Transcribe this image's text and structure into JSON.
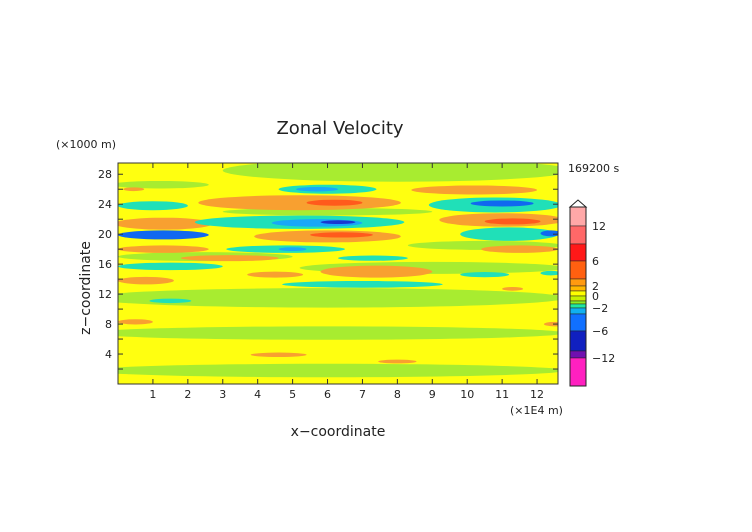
{
  "chart_data": {
    "type": "heatmap",
    "title": "Zonal Velocity",
    "xlabel": "x−coordinate",
    "ylabel": "z−coordinate",
    "x_units": "(×1E4 m)",
    "y_units": "(×1000 m)",
    "time_label": "169200 s",
    "xlim": [
      0,
      12.6
    ],
    "ylim": [
      0,
      29.5
    ],
    "xticks": [
      1,
      2,
      3,
      4,
      5,
      6,
      7,
      8,
      9,
      10,
      11,
      12
    ],
    "yticks": [
      4,
      8,
      12,
      16,
      20,
      24,
      28
    ],
    "background_value": 1,
    "features": [
      {
        "x": 8,
        "z": 28.5,
        "rx": 5,
        "rz": 1.5,
        "v": -0.5
      },
      {
        "x": 1.2,
        "z": 26.6,
        "rx": 1.4,
        "rz": 0.5,
        "v": -0.5
      },
      {
        "x": 6,
        "z": 11.5,
        "rx": 6.8,
        "rz": 1.3,
        "v": -0.5
      },
      {
        "x": 6,
        "z": 6.8,
        "rx": 6.8,
        "rz": 0.9,
        "v": -0.5
      },
      {
        "x": 6,
        "z": 1.8,
        "rx": 6.8,
        "rz": 0.9,
        "v": -0.5
      },
      {
        "x": 9,
        "z": 15.5,
        "rx": 3.8,
        "rz": 0.8,
        "v": -0.5
      },
      {
        "x": 6,
        "z": 23,
        "rx": 3,
        "rz": 0.5,
        "v": -0.5
      },
      {
        "x": 2.5,
        "z": 17,
        "rx": 2.5,
        "rz": 0.6,
        "v": -0.5
      },
      {
        "x": 10.5,
        "z": 18.5,
        "rx": 2.2,
        "rz": 0.6,
        "v": -0.5
      },
      {
        "x": 1.3,
        "z": 21.4,
        "rx": 1.4,
        "rz": 0.8,
        "v": 3
      },
      {
        "x": 5.2,
        "z": 24.2,
        "rx": 2.9,
        "rz": 1.0,
        "v": 3
      },
      {
        "x": 6.2,
        "z": 24.2,
        "rx": 0.8,
        "rz": 0.4,
        "v": 5
      },
      {
        "x": 6.0,
        "z": 19.7,
        "rx": 2.1,
        "rz": 0.8,
        "v": 3
      },
      {
        "x": 6.4,
        "z": 19.9,
        "rx": 0.9,
        "rz": 0.35,
        "v": 5
      },
      {
        "x": 1.3,
        "z": 18,
        "rx": 1.3,
        "rz": 0.5,
        "v": 3
      },
      {
        "x": 3.2,
        "z": 16.8,
        "rx": 1.4,
        "rz": 0.4,
        "v": 3
      },
      {
        "x": 0.8,
        "z": 13.8,
        "rx": 0.8,
        "rz": 0.5,
        "v": 3
      },
      {
        "x": 4.5,
        "z": 14.6,
        "rx": 0.8,
        "rz": 0.4,
        "v": 3
      },
      {
        "x": 7.4,
        "z": 15,
        "rx": 1.6,
        "rz": 0.8,
        "v": 3
      },
      {
        "x": 0.5,
        "z": 8.3,
        "rx": 0.5,
        "rz": 0.35,
        "v": 3
      },
      {
        "x": 10.2,
        "z": 25.9,
        "rx": 1.8,
        "rz": 0.6,
        "v": 3
      },
      {
        "x": 11.0,
        "z": 21.9,
        "rx": 1.8,
        "rz": 0.9,
        "v": 3
      },
      {
        "x": 11.3,
        "z": 21.7,
        "rx": 0.8,
        "rz": 0.4,
        "v": 5
      },
      {
        "x": 11.5,
        "z": 18,
        "rx": 1.1,
        "rz": 0.5,
        "v": 3
      },
      {
        "x": 4.6,
        "z": 3.9,
        "rx": 0.8,
        "rz": 0.3,
        "v": 3
      },
      {
        "x": 8.0,
        "z": 3.0,
        "rx": 0.55,
        "rz": 0.25,
        "v": 3
      },
      {
        "x": 12.5,
        "z": 8,
        "rx": 0.3,
        "rz": 0.3,
        "v": 3
      },
      {
        "x": 11.3,
        "z": 12.7,
        "rx": 0.3,
        "rz": 0.25,
        "v": 3
      },
      {
        "x": 0.45,
        "z": 26,
        "rx": 0.3,
        "rz": 0.25,
        "v": 3
      },
      {
        "x": 6,
        "z": 26,
        "rx": 1.4,
        "rz": 0.6,
        "v": -2
      },
      {
        "x": 5.7,
        "z": 26,
        "rx": 0.6,
        "rz": 0.3,
        "v": -4
      },
      {
        "x": 5.2,
        "z": 21.6,
        "rx": 3.0,
        "rz": 0.9,
        "v": -2
      },
      {
        "x": 5.7,
        "z": 21.5,
        "rx": 1.3,
        "rz": 0.5,
        "v": -4
      },
      {
        "x": 6.3,
        "z": 21.6,
        "rx": 0.5,
        "rz": 0.25,
        "v": -6
      },
      {
        "x": 1.3,
        "z": 19.9,
        "rx": 1.3,
        "rz": 0.6,
        "v": -5
      },
      {
        "x": 1.0,
        "z": 23.8,
        "rx": 1.0,
        "rz": 0.6,
        "v": -2
      },
      {
        "x": 10.8,
        "z": 23.9,
        "rx": 1.9,
        "rz": 1.0,
        "v": -2
      },
      {
        "x": 11.0,
        "z": 24.1,
        "rx": 0.9,
        "rz": 0.4,
        "v": -5
      },
      {
        "x": 11.2,
        "z": 20.0,
        "rx": 1.4,
        "rz": 0.9,
        "v": -2
      },
      {
        "x": 12.4,
        "z": 20.1,
        "rx": 0.3,
        "rz": 0.4,
        "v": -5
      },
      {
        "x": 4.8,
        "z": 18,
        "rx": 1.7,
        "rz": 0.5,
        "v": -2
      },
      {
        "x": 5.0,
        "z": 18,
        "rx": 0.4,
        "rz": 0.25,
        "v": -4
      },
      {
        "x": 7.3,
        "z": 16.8,
        "rx": 1.0,
        "rz": 0.35,
        "v": -2
      },
      {
        "x": 1.5,
        "z": 15.7,
        "rx": 1.5,
        "rz": 0.5,
        "v": -2
      },
      {
        "x": 7.0,
        "z": 13.3,
        "rx": 2.3,
        "rz": 0.45,
        "v": -2
      },
      {
        "x": 10.5,
        "z": 14.6,
        "rx": 0.7,
        "rz": 0.35,
        "v": -2
      },
      {
        "x": 1.5,
        "z": 11.1,
        "rx": 0.6,
        "rz": 0.3,
        "v": -2
      },
      {
        "x": 12.4,
        "z": 14.8,
        "rx": 0.3,
        "rz": 0.3,
        "v": -2
      }
    ],
    "colorbar": {
      "segments": [
        "#ffa8a8",
        "#ff6868",
        "#ff1818",
        "#ff6010",
        "#ff9a10",
        "#ffb800",
        "#ffff00",
        "#c8f000",
        "#90ee20",
        "#20e8a0",
        "#10b0f0",
        "#1070ff",
        "#1020c0",
        "#7010b0",
        "#ff20c0"
      ],
      "labels": [
        {
          "text": "12",
          "boundary": 1
        },
        {
          "text": "6",
          "boundary": 3
        },
        {
          "text": "2",
          "boundary": 5
        },
        {
          "text": "0",
          "boundary": 7
        },
        {
          "text": "−2",
          "boundary": 10
        },
        {
          "text": "−6",
          "boundary": 12
        },
        {
          "text": "−12",
          "boundary": 14
        }
      ]
    }
  }
}
